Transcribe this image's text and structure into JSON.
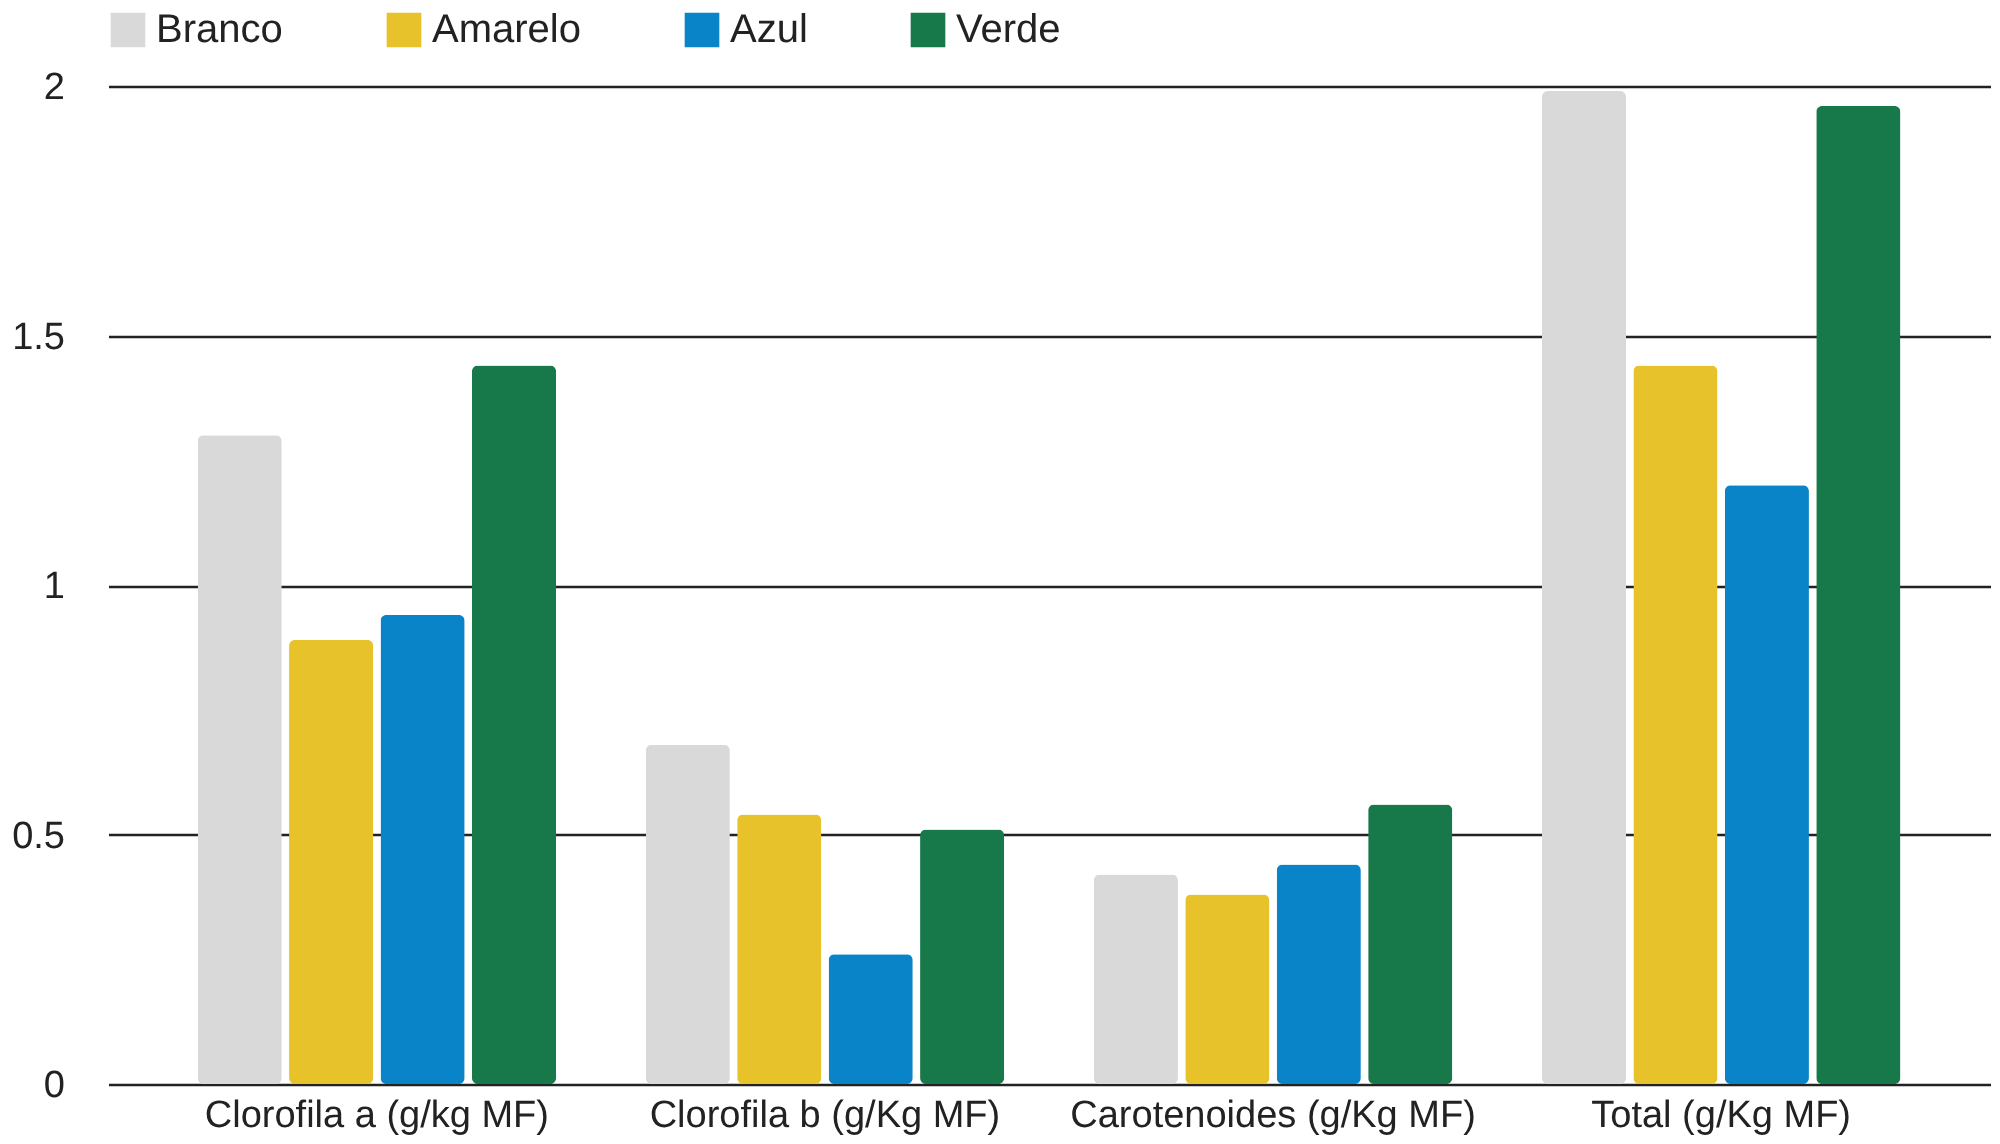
{
  "chart_data": {
    "type": "bar",
    "categories": [
      "Clorofila a (g/kg MF)",
      "Clorofila b (g/Kg MF)",
      "Carotenoides (g/Kg MF)",
      "Total (g/Kg MF)"
    ],
    "series": [
      {
        "name": "Branco",
        "color": "#d9d9d9",
        "values": [
          1.3,
          0.68,
          0.42,
          1.99
        ]
      },
      {
        "name": "Amarelo",
        "color": "#e8c22b",
        "values": [
          0.89,
          0.54,
          0.38,
          1.44
        ]
      },
      {
        "name": "Azul",
        "color": "#0a84c9",
        "values": [
          0.94,
          0.26,
          0.44,
          1.2
        ]
      },
      {
        "name": "Verde",
        "color": "#17784a",
        "values": [
          1.44,
          0.51,
          0.56,
          1.96
        ]
      }
    ],
    "ylim": [
      0,
      2
    ],
    "yticks": [
      0,
      0.5,
      1,
      1.5,
      2
    ],
    "grid": "y",
    "legend": "top"
  }
}
